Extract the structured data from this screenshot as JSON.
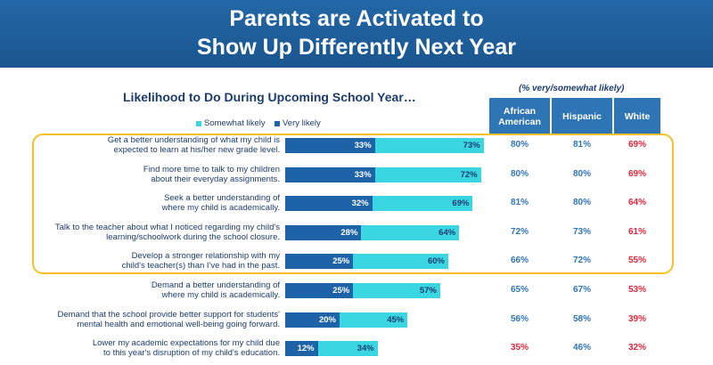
{
  "header": {
    "title_line1": "Parents are Activated to",
    "title_line2": "Show Up Differently Next Year"
  },
  "subtitle": "Likelihood to Do During Upcoming School Year…",
  "pct_note": "(% very/somewhat likely)",
  "legend": {
    "somewhat": "Somewhat likely",
    "very": "Very likely"
  },
  "colors": {
    "banner": "#1d5e9a",
    "very": "#1e63a8",
    "somewhat": "#3ad7e2",
    "blue_value": "#2e75b6",
    "red_value": "#e0263a",
    "highlight": "#f5c12b",
    "column_header": "#2e75b6"
  },
  "columns": [
    "African American",
    "Hispanic",
    "White"
  ],
  "chart_data": {
    "type": "bar",
    "orientation": "horizontal",
    "stacked": true,
    "title": "Likelihood to Do During Upcoming School Year…",
    "categories": [
      "Get a better understanding of what my child is expected to learn at his/her new grade level.",
      "Find more time to talk to my children about their everyday assignments.",
      "Seek a better understanding of where my child is academically.",
      "Talk to the teacher about what I noticed regarding my child's learning/schoolwork during the school closure.",
      "Develop a stronger relationship with my child's teacher(s) than I've had in the past.",
      "Demand a better understanding of where my child is academically.",
      "Demand that the school provide better support for students' mental health and emotional well-being going forward.",
      "Lower my academic expectations for my child due to this year's disruption of my child's education."
    ],
    "series": [
      {
        "name": "Very likely",
        "values": [
          33,
          33,
          32,
          28,
          25,
          25,
          20,
          12
        ]
      },
      {
        "name": "Somewhat likely",
        "values": [
          40,
          39,
          37,
          36,
          35,
          32,
          25,
          22
        ]
      }
    ],
    "totals": [
      73,
      72,
      69,
      64,
      60,
      57,
      45,
      34
    ],
    "legend_position": "top",
    "grid": false
  },
  "rows": [
    {
      "label_lines": [
        "Get a better understanding of what my child is",
        "expected to learn at his/her new grade level."
      ],
      "very": 33,
      "total": 73,
      "very_label": "33%",
      "total_label": "73%",
      "aa": "80%",
      "hisp": "81%",
      "white": "69%",
      "aa_red": false,
      "hisp_red": false,
      "white_red": true
    },
    {
      "label_lines": [
        "Find more time to talk to my children",
        "about their everyday assignments."
      ],
      "very": 33,
      "total": 72,
      "very_label": "33%",
      "total_label": "72%",
      "aa": "80%",
      "hisp": "80%",
      "white": "69%",
      "aa_red": false,
      "hisp_red": false,
      "white_red": true
    },
    {
      "label_lines": [
        "Seek a better understanding of",
        "where my child is academically."
      ],
      "very": 32,
      "total": 69,
      "very_label": "32%",
      "total_label": "69%",
      "aa": "81%",
      "hisp": "80%",
      "white": "64%",
      "aa_red": false,
      "hisp_red": false,
      "white_red": true
    },
    {
      "label_lines": [
        "Talk to the teacher about what I noticed regarding my child's",
        "learning/schoolwork during the school closure."
      ],
      "very": 28,
      "total": 64,
      "very_label": "28%",
      "total_label": "64%",
      "aa": "72%",
      "hisp": "73%",
      "white": "61%",
      "aa_red": false,
      "hisp_red": false,
      "white_red": true
    },
    {
      "label_lines": [
        "Develop a stronger relationship with my",
        "child's teacher(s) than I've had in the past."
      ],
      "very": 25,
      "total": 60,
      "very_label": "25%",
      "total_label": "60%",
      "aa": "66%",
      "hisp": "72%",
      "white": "55%",
      "aa_red": false,
      "hisp_red": false,
      "white_red": true
    },
    {
      "label_lines": [
        "Demand a better understanding of",
        "where my child is academically."
      ],
      "very": 25,
      "total": 57,
      "very_label": "25%",
      "total_label": "57%",
      "aa": "65%",
      "hisp": "67%",
      "white": "53%",
      "aa_red": false,
      "hisp_red": false,
      "white_red": true
    },
    {
      "label_lines": [
        "Demand that the school provide better support for students'",
        "mental health and emotional well-being going forward."
      ],
      "very": 20,
      "total": 45,
      "very_label": "20%",
      "total_label": "45%",
      "aa": "56%",
      "hisp": "58%",
      "white": "39%",
      "aa_red": false,
      "hisp_red": false,
      "white_red": true
    },
    {
      "label_lines": [
        "Lower my academic expectations for my child due",
        "to this year's disruption of my child's education."
      ],
      "very": 12,
      "total": 34,
      "very_label": "12%",
      "total_label": "34%",
      "aa": "35%",
      "hisp": "46%",
      "white": "32%",
      "aa_red": true,
      "hisp_red": false,
      "white_red": true
    }
  ]
}
